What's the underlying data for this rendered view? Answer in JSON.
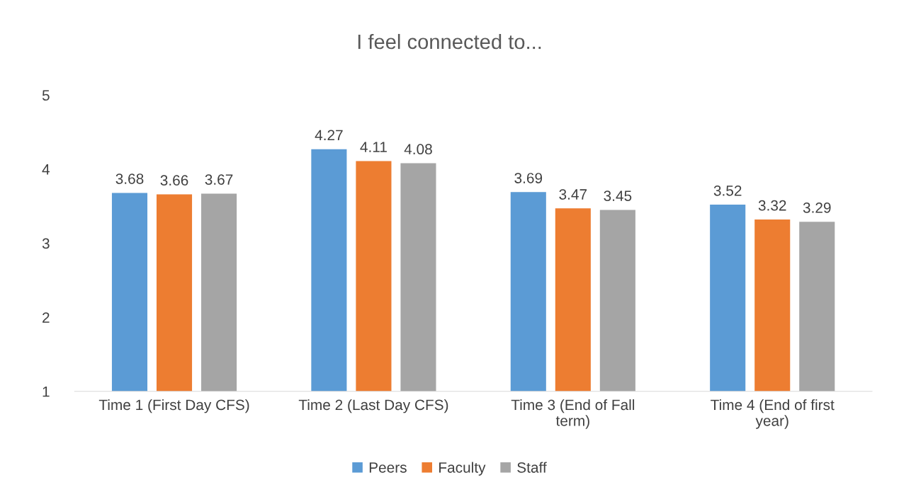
{
  "chart_data": {
    "type": "bar",
    "title": "I feel connected to...",
    "categories": [
      "Time 1 (First Day CFS)",
      "Time 2 (Last Day CFS)",
      "Time 3 (End of Fall\nterm)",
      "Time 4 (End of first\nyear)"
    ],
    "series": [
      {
        "name": "Peers",
        "color": "#5b9bd5",
        "values": [
          3.68,
          4.27,
          3.69,
          3.52
        ]
      },
      {
        "name": "Faculty",
        "color": "#ed7d31",
        "values": [
          3.66,
          4.11,
          3.47,
          3.32
        ]
      },
      {
        "name": "Staff",
        "color": "#a5a5a5",
        "values": [
          3.67,
          4.08,
          3.45,
          3.29
        ]
      }
    ],
    "ylim": [
      1,
      5
    ],
    "yticks": [
      1,
      2,
      3,
      4,
      5
    ],
    "data_labels": true,
    "legend": "bottom",
    "grid": false
  }
}
